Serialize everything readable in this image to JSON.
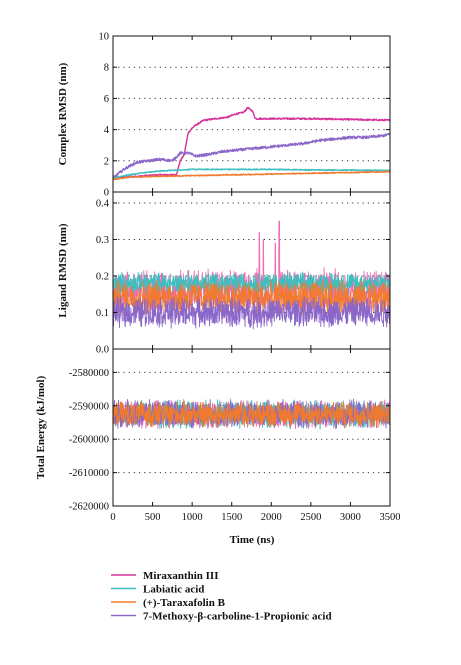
{
  "chart_data": {
    "type": "line",
    "x": {
      "label": "Time (ns)",
      "range": [
        0,
        3500
      ],
      "ticks": [
        "0",
        "500",
        "1000",
        "1500",
        "2000",
        "2500",
        "3000",
        "3500"
      ]
    },
    "panels": [
      {
        "id": "complex-rmsd",
        "ylabel": "Complex RMSD (nm)",
        "ylim": [
          0,
          10
        ],
        "yticks": [
          "0",
          "2",
          "4",
          "6",
          "8",
          "10"
        ],
        "grid": "dotted horizontal",
        "series": [
          {
            "name": "Miraxanthin III",
            "color": "#d6339a",
            "noise": 0.05,
            "points": [
              [
                0,
                0.9
              ],
              [
                300,
                1.0
              ],
              [
                600,
                1.1
              ],
              [
                800,
                1.1
              ],
              [
                850,
                2.0
              ],
              [
                900,
                2.4
              ],
              [
                950,
                3.8
              ],
              [
                1000,
                4.1
              ],
              [
                1050,
                4.3
              ],
              [
                1150,
                4.6
              ],
              [
                1300,
                4.7
              ],
              [
                1450,
                4.8
              ],
              [
                1550,
                5.0
              ],
              [
                1650,
                5.1
              ],
              [
                1700,
                5.4
              ],
              [
                1760,
                5.2
              ],
              [
                1800,
                4.7
              ],
              [
                2000,
                4.7
              ],
              [
                2500,
                4.7
              ],
              [
                3000,
                4.65
              ],
              [
                3500,
                4.6
              ]
            ]
          },
          {
            "name": "Labiatic acid",
            "color": "#3cbfbf",
            "noise": 0.03,
            "points": [
              [
                0,
                0.9
              ],
              [
                200,
                1.1
              ],
              [
                400,
                1.25
              ],
              [
                600,
                1.35
              ],
              [
                1000,
                1.45
              ],
              [
                1500,
                1.45
              ],
              [
                2000,
                1.45
              ],
              [
                2500,
                1.42
              ],
              [
                3000,
                1.4
              ],
              [
                3500,
                1.38
              ]
            ]
          },
          {
            "name": "(+)-Taraxafolin B",
            "color": "#f07a2e",
            "noise": 0.03,
            "points": [
              [
                0,
                0.8
              ],
              [
                200,
                0.95
              ],
              [
                500,
                1.0
              ],
              [
                1000,
                1.05
              ],
              [
                1500,
                1.1
              ],
              [
                2000,
                1.15
              ],
              [
                2500,
                1.2
              ],
              [
                3000,
                1.25
              ],
              [
                3500,
                1.3
              ]
            ]
          },
          {
            "name": "7-Methoxy-β-carboline-1-Propionic acid",
            "color": "#8a67c8",
            "noise": 0.08,
            "points": [
              [
                0,
                0.9
              ],
              [
                150,
                1.5
              ],
              [
                300,
                1.9
              ],
              [
                450,
                2.0
              ],
              [
                600,
                2.1
              ],
              [
                750,
                2.0
              ],
              [
                850,
                2.5
              ],
              [
                950,
                2.5
              ],
              [
                1050,
                2.3
              ],
              [
                1200,
                2.4
              ],
              [
                1400,
                2.6
              ],
              [
                1600,
                2.7
              ],
              [
                1800,
                2.8
              ],
              [
                2000,
                2.9
              ],
              [
                2200,
                3.0
              ],
              [
                2400,
                3.1
              ],
              [
                2600,
                3.3
              ],
              [
                2800,
                3.4
              ],
              [
                3000,
                3.5
              ],
              [
                3200,
                3.5
              ],
              [
                3400,
                3.6
              ],
              [
                3500,
                3.7
              ]
            ]
          }
        ]
      },
      {
        "id": "ligand-rmsd",
        "ylabel": "Ligand RMSD (nm)",
        "ylim": [
          0,
          0.43
        ],
        "yticks": [
          "0.0",
          "0.1",
          "0.2",
          "0.3",
          "0.4"
        ],
        "grid": "dotted horizontal",
        "series": [
          {
            "name": "Miraxanthin III",
            "color": "#f06cb4",
            "mean": 0.16,
            "amp": 0.05,
            "spikes": [
              [
                1850,
                0.32
              ],
              [
                2100,
                0.35
              ],
              [
                1900,
                0.3
              ],
              [
                2050,
                0.29
              ]
            ]
          },
          {
            "name": "Labiatic acid",
            "color": "#3cbfbf",
            "mean": 0.18,
            "amp": 0.025,
            "spikes": []
          },
          {
            "name": "(+)-Taraxafolin B",
            "color": "#f07a2e",
            "mean": 0.14,
            "amp": 0.04,
            "spikes": []
          },
          {
            "name": "7-Methoxy-β-carboline-1-Propionic acid",
            "color": "#8a67c8",
            "mean": 0.1,
            "amp": 0.035,
            "spikes": []
          }
        ]
      },
      {
        "id": "total-energy",
        "ylabel": "Total Energy (kJ/mol)",
        "ylim": [
          -2620000,
          -2573000
        ],
        "yticks": [
          "-2580000",
          "-2590000",
          "-2600000",
          "-2610000",
          "-2620000"
        ],
        "ytick_values": [
          -2580000,
          -2590000,
          -2600000,
          -2610000,
          -2620000
        ],
        "grid": "dotted horizontal",
        "series": [
          {
            "name": "Miraxanthin III",
            "color": "#f06cb4",
            "mean": -2592500,
            "amp": 3500
          },
          {
            "name": "Labiatic acid",
            "color": "#3cbfbf",
            "mean": -2592500,
            "amp": 3500
          },
          {
            "name": "7-Methoxy-β-carboline-1-Propionic acid",
            "color": "#8a67c8",
            "mean": -2592500,
            "amp": 3500
          },
          {
            "name": "(+)-Taraxafolin B",
            "color": "#f07a2e",
            "mean": -2592500,
            "amp": 3200
          }
        ]
      }
    ],
    "legend": {
      "placement": "bottom",
      "entries": [
        {
          "label": "Miraxanthin III",
          "color": "#d6339a"
        },
        {
          "label": "Labiatic acid",
          "color": "#3cbfbf"
        },
        {
          "label": "(+)-Taraxafolin B",
          "color": "#f07a2e"
        },
        {
          "label": "7-Methoxy-β-carboline-1-Propionic acid",
          "color": "#8a67c8"
        }
      ]
    }
  }
}
